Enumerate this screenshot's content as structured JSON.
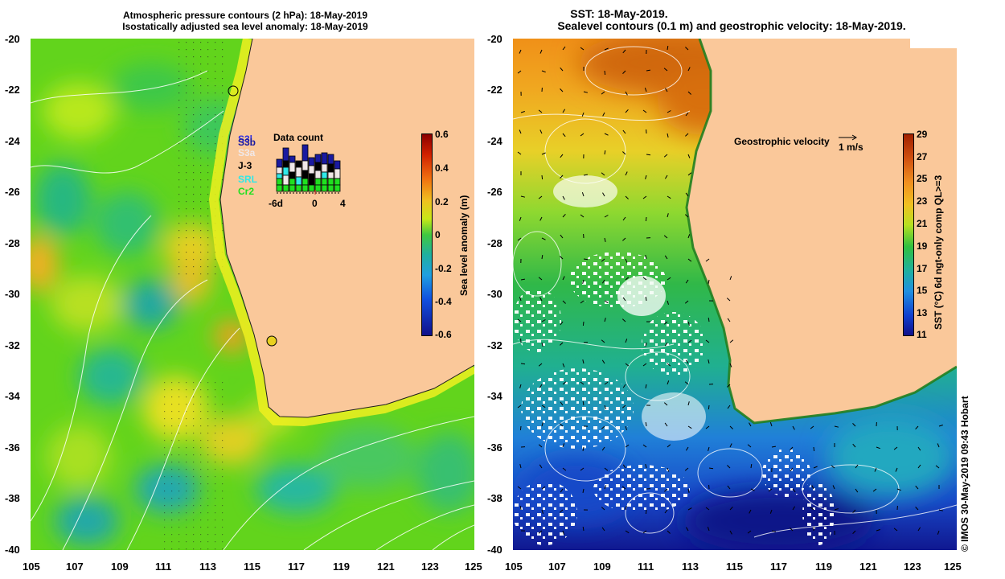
{
  "left_panel": {
    "title_line1": "Atmospheric pressure contours (2 hPa): 18-May-2019",
    "title_line2": "Isostatically adjusted sea level anomaly: 18-May-2019",
    "y_ticks": [
      "-20",
      "-22",
      "-24",
      "-26",
      "-28",
      "-30",
      "-32",
      "-34",
      "-36",
      "-38",
      "-40"
    ],
    "x_ticks": [
      "105",
      "107",
      "109",
      "111",
      "113",
      "115",
      "117",
      "119",
      "121",
      "123",
      "125"
    ],
    "colorbar_label": "Sea level anomaly (m)",
    "colorbar_ticks": [
      "0.6",
      "0.4",
      "0.2",
      "0",
      "-0.2",
      "-0.4",
      "-0.6"
    ],
    "legend": {
      "title": "Data count",
      "satellites": [
        {
          "label": "S3b",
          "color": "#1a1aa0"
        },
        {
          "label": "S3a",
          "color": "#f0e8e8"
        },
        {
          "label": "J-3",
          "color": "#000000"
        },
        {
          "label": "SRL",
          "color": "#30e8e8"
        },
        {
          "label": "Cr2",
          "color": "#20e020"
        }
      ],
      "hidden_label": "S3l",
      "axis_labels": [
        "-6d",
        "0",
        "4"
      ]
    }
  },
  "right_panel": {
    "title_line1": "SST: 18-May-2019.",
    "title_line2": "Sealevel contours (0.1 m) and geostrophic velocity: 18-May-2019.",
    "y_ticks": [
      "-20",
      "-22",
      "-24",
      "-26",
      "-28",
      "-30",
      "-32",
      "-34",
      "-36",
      "-38",
      "-40"
    ],
    "x_ticks": [
      "105",
      "107",
      "109",
      "111",
      "113",
      "115",
      "117",
      "119",
      "121",
      "123",
      "125"
    ],
    "colorbar_label": "SST (°C) 6d ngt-only comp QL>=3",
    "colorbar_ticks": [
      "29",
      "27",
      "25",
      "23",
      "21",
      "19",
      "17",
      "15",
      "13",
      "11"
    ],
    "velocity_label": "Geostrophic velocity",
    "velocity_scale": "1 m/s"
  },
  "credit": "© IMOS 30-May-2019 09:43 Hobart",
  "colors": {
    "land": "#fac89a",
    "sla_bg": "#6ad81e",
    "sst_warm": "#f0a020"
  }
}
